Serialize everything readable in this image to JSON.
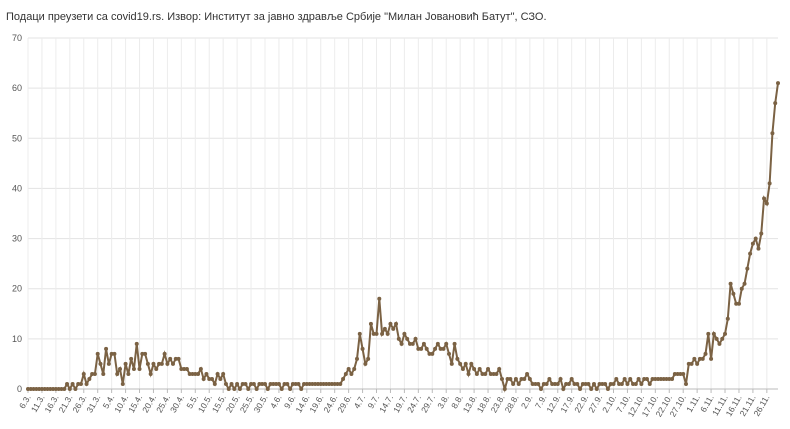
{
  "chart_data": {
    "type": "line",
    "title": "Подаци преузети са covid19.rs. Извор: Институт за јавно здравље Србије \"Милан Јовановић Батут\", СЗО.",
    "color": "#7b6244",
    "grid": true,
    "ylim": [
      0,
      70
    ],
    "yticks": [
      0,
      10,
      20,
      30,
      40,
      50,
      60,
      70
    ],
    "categories": [
      "6.3.",
      null,
      null,
      null,
      null,
      "11.3.",
      null,
      null,
      null,
      null,
      "16.3.",
      null,
      null,
      null,
      null,
      "21.3.",
      null,
      null,
      null,
      null,
      "26.3.",
      null,
      null,
      null,
      null,
      "31.3.",
      null,
      null,
      null,
      null,
      "5.4.",
      null,
      null,
      null,
      null,
      "10.4.",
      null,
      null,
      null,
      null,
      "15.4.",
      null,
      null,
      null,
      null,
      "20.4.",
      null,
      null,
      null,
      null,
      "25.4.",
      null,
      null,
      null,
      null,
      "30.4.",
      null,
      null,
      null,
      null,
      "5.5.",
      null,
      null,
      null,
      null,
      "10.5.",
      null,
      null,
      null,
      null,
      "15.5.",
      null,
      null,
      null,
      null,
      "20.5.",
      null,
      null,
      null,
      null,
      "25.5.",
      null,
      null,
      null,
      null,
      "30.5.",
      null,
      null,
      null,
      null,
      "4.6.",
      null,
      null,
      null,
      null,
      "9.6.",
      null,
      null,
      null,
      null,
      "14.6.",
      null,
      null,
      null,
      null,
      "19.6.",
      null,
      null,
      null,
      null,
      "24.6.",
      null,
      null,
      null,
      null,
      "29.6.",
      null,
      null,
      null,
      null,
      "4.7.",
      null,
      null,
      null,
      null,
      "9.7.",
      null,
      null,
      null,
      null,
      "14.7.",
      null,
      null,
      null,
      null,
      "19.7.",
      null,
      null,
      null,
      null,
      "24.7.",
      null,
      null,
      null,
      null,
      "29.7.",
      null,
      null,
      null,
      null,
      "3.8.",
      null,
      null,
      null,
      null,
      "8.8.",
      null,
      null,
      null,
      null,
      "13.8.",
      null,
      null,
      null,
      null,
      "18.8.",
      null,
      null,
      null,
      null,
      "23.8.",
      null,
      null,
      null,
      null,
      "28.8.",
      null,
      null,
      null,
      null,
      "2.9.",
      null,
      null,
      null,
      null,
      "7.9.",
      null,
      null,
      null,
      null,
      "12.9.",
      null,
      null,
      null,
      null,
      "17.9.",
      null,
      null,
      null,
      null,
      "22.9.",
      null,
      null,
      null,
      null,
      "27.9.",
      null,
      null,
      null,
      null,
      "2.10.",
      null,
      null,
      null,
      null,
      "7.10.",
      null,
      null,
      null,
      null,
      "12.10.",
      null,
      null,
      null,
      null,
      "17.10.",
      null,
      null,
      null,
      null,
      "22.10.",
      null,
      null,
      null,
      null,
      "27.10.",
      null,
      null,
      null,
      null,
      "1.11.",
      null,
      null,
      null,
      null,
      "6.11.",
      null,
      null,
      null,
      null,
      "11.11.",
      null,
      null,
      null,
      null,
      "16.11.",
      null,
      null,
      null,
      null,
      "21.11.",
      null,
      null,
      null,
      null,
      "26.11.",
      null,
      null,
      null,
      null
    ],
    "values": [
      0,
      0,
      0,
      0,
      0,
      0,
      0,
      0,
      0,
      0,
      0,
      0,
      0,
      0,
      1,
      0,
      1,
      0,
      1,
      1,
      3,
      1,
      2,
      3,
      3,
      7,
      5,
      3,
      8,
      5,
      7,
      7,
      3,
      4,
      1,
      5,
      3,
      6,
      4,
      9,
      4,
      7,
      7,
      5,
      3,
      5,
      4,
      5,
      5,
      7,
      5,
      6,
      5,
      6,
      6,
      4,
      4,
      4,
      3,
      3,
      3,
      3,
      4,
      2,
      3,
      2,
      2,
      1,
      3,
      2,
      3,
      1,
      0,
      1,
      0,
      1,
      0,
      1,
      1,
      0,
      1,
      1,
      0,
      1,
      1,
      1,
      0,
      1,
      1,
      1,
      1,
      0,
      1,
      1,
      0,
      1,
      1,
      1,
      0,
      1,
      1,
      1,
      1,
      1,
      1,
      1,
      1,
      1,
      1,
      1,
      1,
      1,
      1,
      2,
      3,
      4,
      3,
      4,
      6,
      11,
      8,
      5,
      6,
      13,
      11,
      11,
      18,
      11,
      12,
      11,
      13,
      12,
      13,
      10,
      9,
      11,
      10,
      9,
      9,
      10,
      8,
      8,
      9,
      8,
      7,
      7,
      8,
      9,
      8,
      8,
      9,
      7,
      5,
      9,
      6,
      5,
      4,
      5,
      3,
      5,
      4,
      3,
      4,
      3,
      3,
      4,
      3,
      3,
      3,
      4,
      2,
      0,
      2,
      2,
      1,
      2,
      1,
      2,
      2,
      3,
      2,
      1,
      1,
      1,
      0,
      1,
      1,
      2,
      1,
      1,
      1,
      2,
      0,
      1,
      1,
      2,
      1,
      1,
      0,
      1,
      1,
      1,
      0,
      1,
      0,
      1,
      1,
      1,
      0,
      1,
      1,
      2,
      1,
      1,
      2,
      1,
      2,
      1,
      1,
      2,
      1,
      2,
      2,
      1,
      2,
      2,
      2,
      2,
      2,
      2,
      2,
      2,
      3,
      3,
      3,
      3,
      1,
      5,
      5,
      6,
      5,
      6,
      6,
      7,
      11,
      6,
      11,
      10,
      9,
      10,
      11,
      14,
      21,
      19,
      17,
      17,
      20,
      21,
      24,
      27,
      29,
      30,
      28,
      31,
      38,
      37,
      41,
      51,
      57,
      61
    ]
  }
}
